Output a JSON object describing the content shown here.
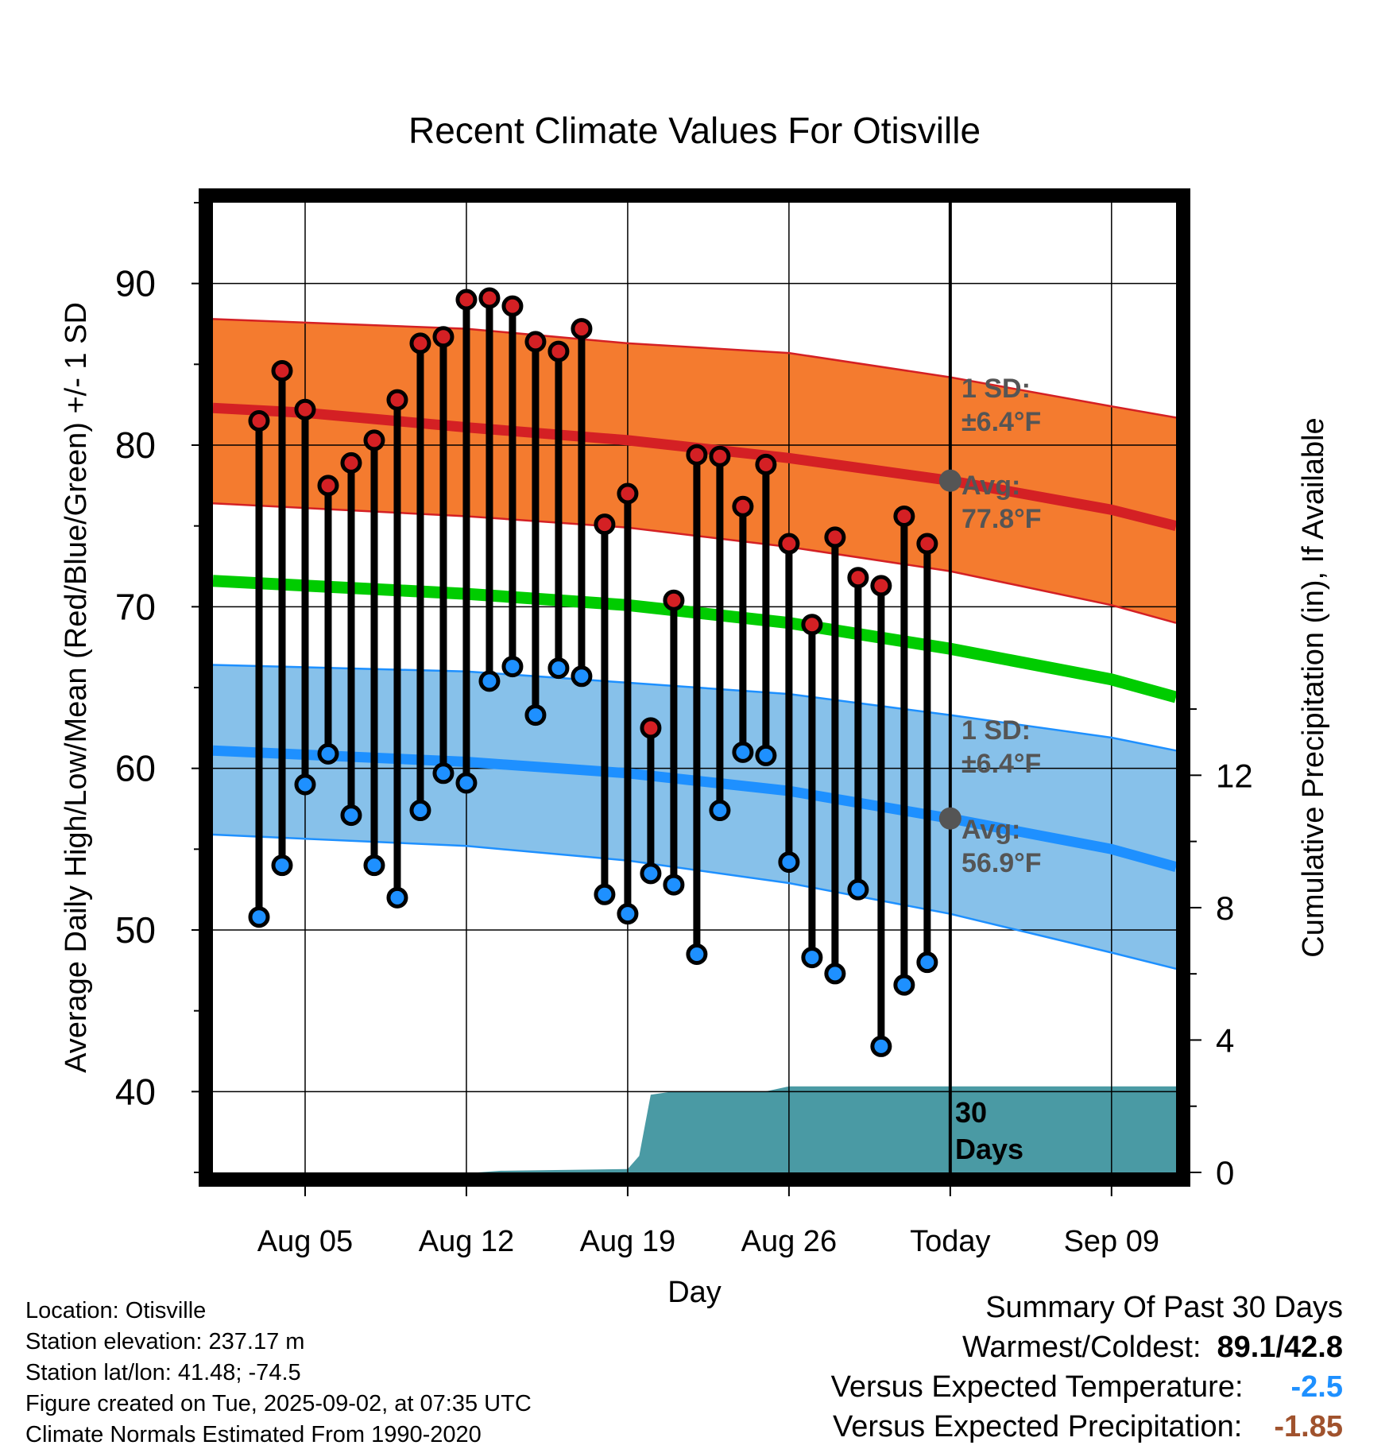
{
  "chart_data": {
    "type": "line",
    "title": "Recent Climate Values For Otisville",
    "xlabel": "Day",
    "ylabel": "Average Daily High/Low/Mean (Red/Blue/Green) +/- 1 SD",
    "y2label": "Cumulative Precipitation (in), If Available",
    "x_range": [
      "Aug 01",
      "Sep 12"
    ],
    "ylim": [
      35,
      95
    ],
    "y_ticks": [
      40,
      50,
      60,
      70,
      80,
      90
    ],
    "y2lim": [
      0,
      29.3
    ],
    "y2_ticks": [
      0,
      4,
      8,
      12
    ],
    "x_tick_labels": [
      "Aug 05",
      "Aug 12",
      "Aug 19",
      "Aug 26",
      "Today",
      "Sep 09"
    ],
    "x_ticks": [
      "Aug 05",
      "Aug 12",
      "Aug 19",
      "Aug 26",
      "Sep 02",
      "Sep 09"
    ],
    "today": "Sep 02",
    "grid": true,
    "normals": {
      "high_avg": [
        [
          1,
          82.3
        ],
        [
          5,
          82.0
        ],
        [
          12,
          81.1
        ],
        [
          19,
          80.3
        ],
        [
          26,
          79.2
        ],
        [
          33,
          77.8
        ],
        [
          40,
          76.0
        ],
        [
          42.8,
          75.0
        ]
      ],
      "high_plus_sd": [
        [
          1,
          87.8
        ],
        [
          12,
          87.2
        ],
        [
          19,
          86.3
        ],
        [
          26,
          85.7
        ],
        [
          33,
          84.2
        ],
        [
          40,
          82.4
        ],
        [
          42.8,
          81.7
        ]
      ],
      "high_minus_sd": [
        [
          1,
          76.4
        ],
        [
          12,
          75.6
        ],
        [
          19,
          74.9
        ],
        [
          26,
          73.7
        ],
        [
          33,
          72.2
        ],
        [
          40,
          70.1
        ],
        [
          42.8,
          69.0
        ]
      ],
      "mean_avg": [
        [
          1,
          71.6
        ],
        [
          12,
          70.8
        ],
        [
          19,
          70.1
        ],
        [
          26,
          69.0
        ],
        [
          33,
          67.4
        ],
        [
          40,
          65.5
        ],
        [
          42.8,
          64.4
        ]
      ],
      "low_avg": [
        [
          1,
          61.1
        ],
        [
          12,
          60.4
        ],
        [
          19,
          59.7
        ],
        [
          26,
          58.6
        ],
        [
          33,
          56.9
        ],
        [
          40,
          55.0
        ],
        [
          42.8,
          53.9
        ]
      ],
      "low_plus_sd": [
        [
          1,
          66.4
        ],
        [
          12,
          66.0
        ],
        [
          19,
          65.3
        ],
        [
          26,
          64.6
        ],
        [
          33,
          63.3
        ],
        [
          40,
          61.9
        ],
        [
          42.8,
          61.1
        ]
      ],
      "low_minus_sd": [
        [
          1,
          55.9
        ],
        [
          12,
          55.2
        ],
        [
          19,
          54.3
        ],
        [
          26,
          52.9
        ],
        [
          33,
          51.0
        ],
        [
          40,
          48.6
        ],
        [
          42.8,
          47.6
        ]
      ]
    },
    "daily": {
      "dates": [
        "Aug 03",
        "Aug 04",
        "Aug 05",
        "Aug 06",
        "Aug 07",
        "Aug 08",
        "Aug 09",
        "Aug 10",
        "Aug 11",
        "Aug 12",
        "Aug 13",
        "Aug 14",
        "Aug 15",
        "Aug 16",
        "Aug 17",
        "Aug 18",
        "Aug 19",
        "Aug 20",
        "Aug 21",
        "Aug 22",
        "Aug 23",
        "Aug 24",
        "Aug 25",
        "Aug 26",
        "Aug 27",
        "Aug 28",
        "Aug 29",
        "Aug 30",
        "Aug 31",
        "Sep 01"
      ],
      "high": [
        81.5,
        84.6,
        82.2,
        77.5,
        78.9,
        80.3,
        82.8,
        86.3,
        86.7,
        89.0,
        89.1,
        88.6,
        86.4,
        85.8,
        87.2,
        75.1,
        77.0,
        62.5,
        70.4,
        79.4,
        79.3,
        76.2,
        78.8,
        73.9,
        68.9,
        74.3,
        71.8,
        71.3,
        75.6,
        73.9
      ],
      "low": [
        50.8,
        54.0,
        59.0,
        60.9,
        57.1,
        54.0,
        52.0,
        57.4,
        59.7,
        59.1,
        65.4,
        66.3,
        63.3,
        66.2,
        65.7,
        52.2,
        51.0,
        53.5,
        52.8,
        48.5,
        57.4,
        61.0,
        60.8,
        54.2,
        48.3,
        47.3,
        52.5,
        42.8,
        46.6,
        48.0
      ]
    },
    "cumulative_precip": {
      "points": [
        [
          1,
          0
        ],
        [
          12.5,
          0
        ],
        [
          13.5,
          0.05
        ],
        [
          19,
          0.1
        ],
        [
          19.5,
          0.5
        ],
        [
          20,
          2.35
        ],
        [
          21,
          2.45
        ],
        [
          25,
          2.45
        ],
        [
          26,
          2.6
        ],
        [
          42.8,
          2.6
        ]
      ]
    },
    "annotations": {
      "high_sd_label": "1 SD:",
      "high_sd_value": "±6.4°F",
      "high_avg_label": "Avg:",
      "high_avg_value": "77.8°F",
      "low_sd_label": "1 SD:",
      "low_sd_value": "±6.4°F",
      "low_avg_label": "Avg:",
      "low_avg_value": "56.9°F",
      "days_label_1": "30",
      "days_label_2": "Days"
    },
    "colors": {
      "high": "#d42024",
      "high_band": "#f47b2f",
      "mean": "#00cc00",
      "low": "#1e90ff",
      "low_band": "#87c1ea",
      "precip": "#4a9aa4"
    }
  },
  "footer": {
    "location": "Location: Otisville",
    "elevation": "Station elevation: 237.17 m",
    "latlon": "Station lat/lon: 41.48; -74.5",
    "created": "Figure created on Tue, 2025-09-02, at 07:35 UTC",
    "normals": "Climate Normals Estimated From 1990-2020"
  },
  "summary": {
    "heading": "Summary Of Past 30 Days",
    "warm_cold_label": "Warmest/Coldest:",
    "warm_cold_value": "89.1/42.8",
    "temp_label": "Versus Expected Temperature:",
    "temp_value": "-2.5",
    "temp_color": "#1e90ff",
    "precip_label": "Versus Expected Precipitation:",
    "precip_value": "-1.85",
    "precip_color": "#a0522d"
  }
}
